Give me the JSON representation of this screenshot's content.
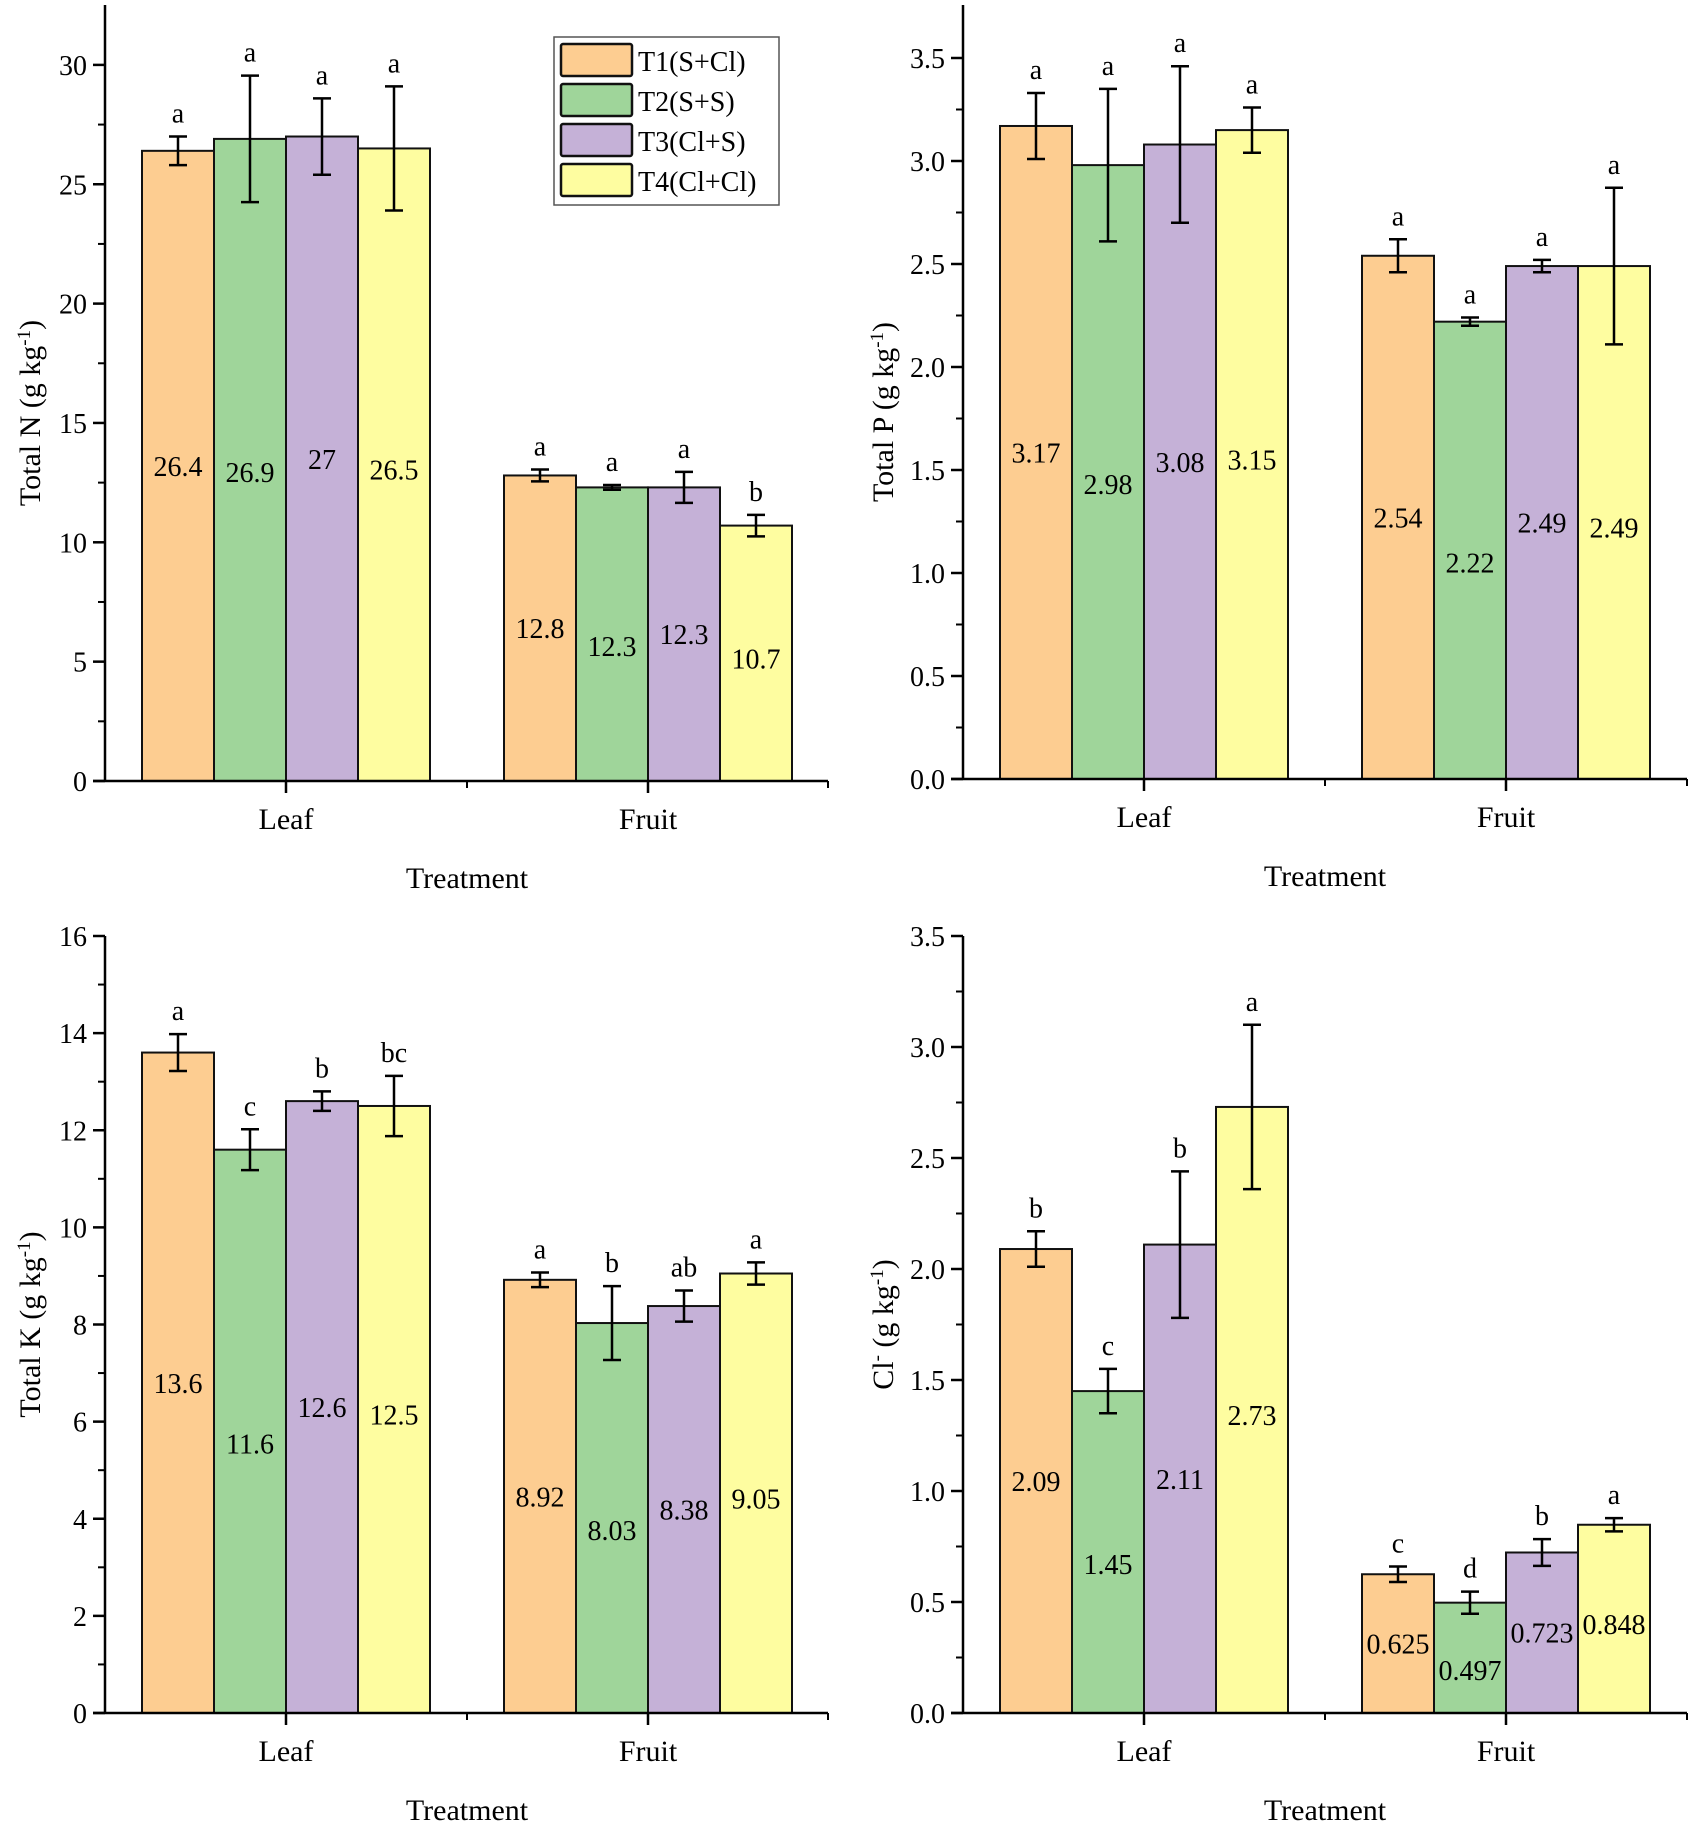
{
  "legend": {
    "entries": [
      {
        "label": "T1(S+Cl)",
        "color": "#FDCD91"
      },
      {
        "label": "T2(S+S)",
        "color": "#9FD59A"
      },
      {
        "label": "T3(Cl+S)",
        "color": "#C5B1D7"
      },
      {
        "label": "T4(Cl+Cl)",
        "color": "#FEFDA0"
      }
    ]
  },
  "chart_data": [
    {
      "type": "bar",
      "panel": "top-left",
      "title": "",
      "xlabel": "Treatment",
      "ylabel": "Total N (g kg-1)",
      "ylabel_main": "Total N (g kg",
      "ylabel_sup": "-1",
      "ylabel_end": ")",
      "categories": [
        "Leaf",
        "Fruit"
      ],
      "ylim": [
        0,
        32.5
      ],
      "yticks": [
        0,
        5,
        10,
        15,
        20,
        25,
        30
      ],
      "ytick_labels": [
        "0",
        "5",
        "10",
        "15",
        "20",
        "25",
        "30"
      ],
      "minor_ticks": true,
      "grid": false,
      "legend": "top-right",
      "series": [
        {
          "name": "T1(S+Cl)",
          "values": [
            26.4,
            12.8
          ],
          "errors": [
            0.6,
            0.25
          ],
          "labels": [
            "26.4",
            "12.8"
          ],
          "sig": [
            "a",
            "a"
          ]
        },
        {
          "name": "T2(S+S)",
          "values": [
            26.9,
            12.3
          ],
          "errors": [
            2.65,
            0.1
          ],
          "labels": [
            "26.9",
            "12.3"
          ],
          "sig": [
            "a",
            "a"
          ]
        },
        {
          "name": "T3(Cl+S)",
          "values": [
            27.0,
            12.3
          ],
          "errors": [
            1.6,
            0.65
          ],
          "labels": [
            "27",
            "12.3"
          ],
          "sig": [
            "a",
            "a"
          ]
        },
        {
          "name": "T4(Cl+Cl)",
          "values": [
            26.5,
            10.7
          ],
          "errors": [
            2.6,
            0.45
          ],
          "labels": [
            "26.5",
            "10.7"
          ],
          "sig": [
            "a",
            "b"
          ]
        }
      ]
    },
    {
      "type": "bar",
      "panel": "top-right",
      "title": "",
      "xlabel": "Treatment",
      "ylabel": "Total P (g kg-1)",
      "ylabel_main": "Total P (g kg",
      "ylabel_sup": "-1",
      "ylabel_end": ")",
      "categories": [
        "Leaf",
        "Fruit"
      ],
      "ylim": [
        0,
        3.75
      ],
      "yticks": [
        0,
        0.5,
        1.0,
        1.5,
        2.0,
        2.5,
        3.0,
        3.5
      ],
      "ytick_labels": [
        "0.0",
        "0.5",
        "1.0",
        "1.5",
        "2.0",
        "2.5",
        "3.0",
        "3.5"
      ],
      "minor_ticks": true,
      "grid": false,
      "series": [
        {
          "name": "T1(S+Cl)",
          "values": [
            3.17,
            2.54
          ],
          "errors": [
            0.16,
            0.08
          ],
          "labels": [
            "3.17",
            "2.54"
          ],
          "sig": [
            "a",
            "a"
          ]
        },
        {
          "name": "T2(S+S)",
          "values": [
            2.98,
            2.22
          ],
          "errors": [
            0.37,
            0.02
          ],
          "labels": [
            "2.98",
            "2.22"
          ],
          "sig": [
            "a",
            "a"
          ]
        },
        {
          "name": "T3(Cl+S)",
          "values": [
            3.08,
            2.49
          ],
          "errors": [
            0.38,
            0.03
          ],
          "labels": [
            "3.08",
            "2.49"
          ],
          "sig": [
            "a",
            "a"
          ]
        },
        {
          "name": "T4(Cl+Cl)",
          "values": [
            3.15,
            2.49
          ],
          "errors": [
            0.11,
            0.38
          ],
          "labels": [
            "3.15",
            "2.49"
          ],
          "sig": [
            "a",
            "a"
          ]
        }
      ]
    },
    {
      "type": "bar",
      "panel": "bottom-left",
      "title": "",
      "xlabel": "Treatment",
      "ylabel": "Total K (g kg-1)",
      "ylabel_main": "Total K (g kg",
      "ylabel_sup": "-1",
      "ylabel_end": ")",
      "categories": [
        "Leaf",
        "Fruit"
      ],
      "ylim": [
        0,
        16
      ],
      "yticks": [
        0,
        2,
        4,
        6,
        8,
        10,
        12,
        14,
        16
      ],
      "ytick_labels": [
        "0",
        "2",
        "4",
        "6",
        "8",
        "10",
        "12",
        "14",
        "16"
      ],
      "minor_ticks": true,
      "grid": false,
      "series": [
        {
          "name": "T1(S+Cl)",
          "values": [
            13.6,
            8.92
          ],
          "errors": [
            0.38,
            0.15
          ],
          "labels": [
            "13.6",
            "8.92"
          ],
          "sig": [
            "a",
            "a"
          ]
        },
        {
          "name": "T2(S+S)",
          "values": [
            11.6,
            8.03
          ],
          "errors": [
            0.42,
            0.76
          ],
          "labels": [
            "11.6",
            "8.03"
          ],
          "sig": [
            "c",
            "b"
          ]
        },
        {
          "name": "T3(Cl+S)",
          "values": [
            12.6,
            8.38
          ],
          "errors": [
            0.2,
            0.32
          ],
          "labels": [
            "12.6",
            "8.38"
          ],
          "sig": [
            "b",
            "ab"
          ]
        },
        {
          "name": "T4(Cl+Cl)",
          "values": [
            12.5,
            9.05
          ],
          "errors": [
            0.62,
            0.23
          ],
          "labels": [
            "12.5",
            "9.05"
          ],
          "sig": [
            "bc",
            "a"
          ]
        }
      ]
    },
    {
      "type": "bar",
      "panel": "bottom-right",
      "title": "",
      "xlabel": "Treatment",
      "ylabel": "Cl- (g kg-1)",
      "ylabel_main": "Cl",
      "ylabel_sup0": "-",
      "ylabel_mid": " (g kg",
      "ylabel_sup": "-1",
      "ylabel_end": ")",
      "categories": [
        "Leaf",
        "Fruit"
      ],
      "ylim": [
        0,
        3.5
      ],
      "yticks": [
        0,
        0.5,
        1.0,
        1.5,
        2.0,
        2.5,
        3.0,
        3.5
      ],
      "ytick_labels": [
        "0.0",
        "0.5",
        "1.0",
        "1.5",
        "2.0",
        "2.5",
        "3.0",
        "3.5"
      ],
      "minor_ticks": true,
      "grid": false,
      "series": [
        {
          "name": "T1(S+Cl)",
          "values": [
            2.09,
            0.625
          ],
          "errors": [
            0.08,
            0.035
          ],
          "labels": [
            "2.09",
            "0.625"
          ],
          "sig": [
            "b",
            "c"
          ]
        },
        {
          "name": "T2(S+S)",
          "values": [
            1.45,
            0.497
          ],
          "errors": [
            0.1,
            0.05
          ],
          "labels": [
            "1.45",
            "0.497"
          ],
          "sig": [
            "c",
            "d"
          ]
        },
        {
          "name": "T3(Cl+S)",
          "values": [
            2.11,
            0.723
          ],
          "errors": [
            0.33,
            0.06
          ],
          "labels": [
            "2.11",
            "0.723"
          ],
          "sig": [
            "b",
            "b"
          ]
        },
        {
          "name": "T4(Cl+Cl)",
          "values": [
            2.73,
            0.848
          ],
          "errors": [
            0.37,
            0.03
          ],
          "labels": [
            "2.73",
            "0.848"
          ],
          "sig": [
            "a",
            "a"
          ]
        }
      ]
    }
  ]
}
